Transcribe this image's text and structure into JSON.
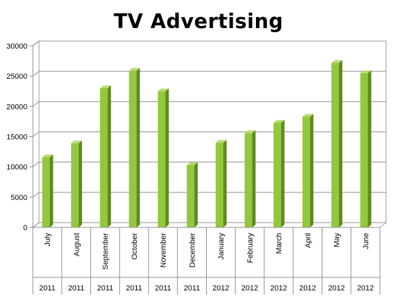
{
  "chart_data": {
    "type": "bar",
    "title": "TV Advertising",
    "xlabel": "",
    "ylabel": "",
    "ylim": [
      0,
      30000
    ],
    "yticks": [
      0,
      5000,
      10000,
      15000,
      20000,
      25000,
      30000
    ],
    "grid": true,
    "legend": "none",
    "categories": [
      "July",
      "August",
      "September",
      "October",
      "November",
      "December",
      "January",
      "February",
      "March",
      "April",
      "May",
      "June"
    ],
    "years": [
      "2011",
      "2011",
      "2011",
      "2011",
      "2011",
      "2011",
      "2012",
      "2012",
      "2012",
      "2012",
      "2012",
      "2012"
    ],
    "values": [
      11600,
      13900,
      23000,
      25900,
      22500,
      10300,
      14000,
      15600,
      17300,
      18300,
      27200,
      25500
    ],
    "bar_color": "#92c83e",
    "bar_side_color": "#5f8a1e",
    "bar_top_color": "#b7de6e"
  }
}
